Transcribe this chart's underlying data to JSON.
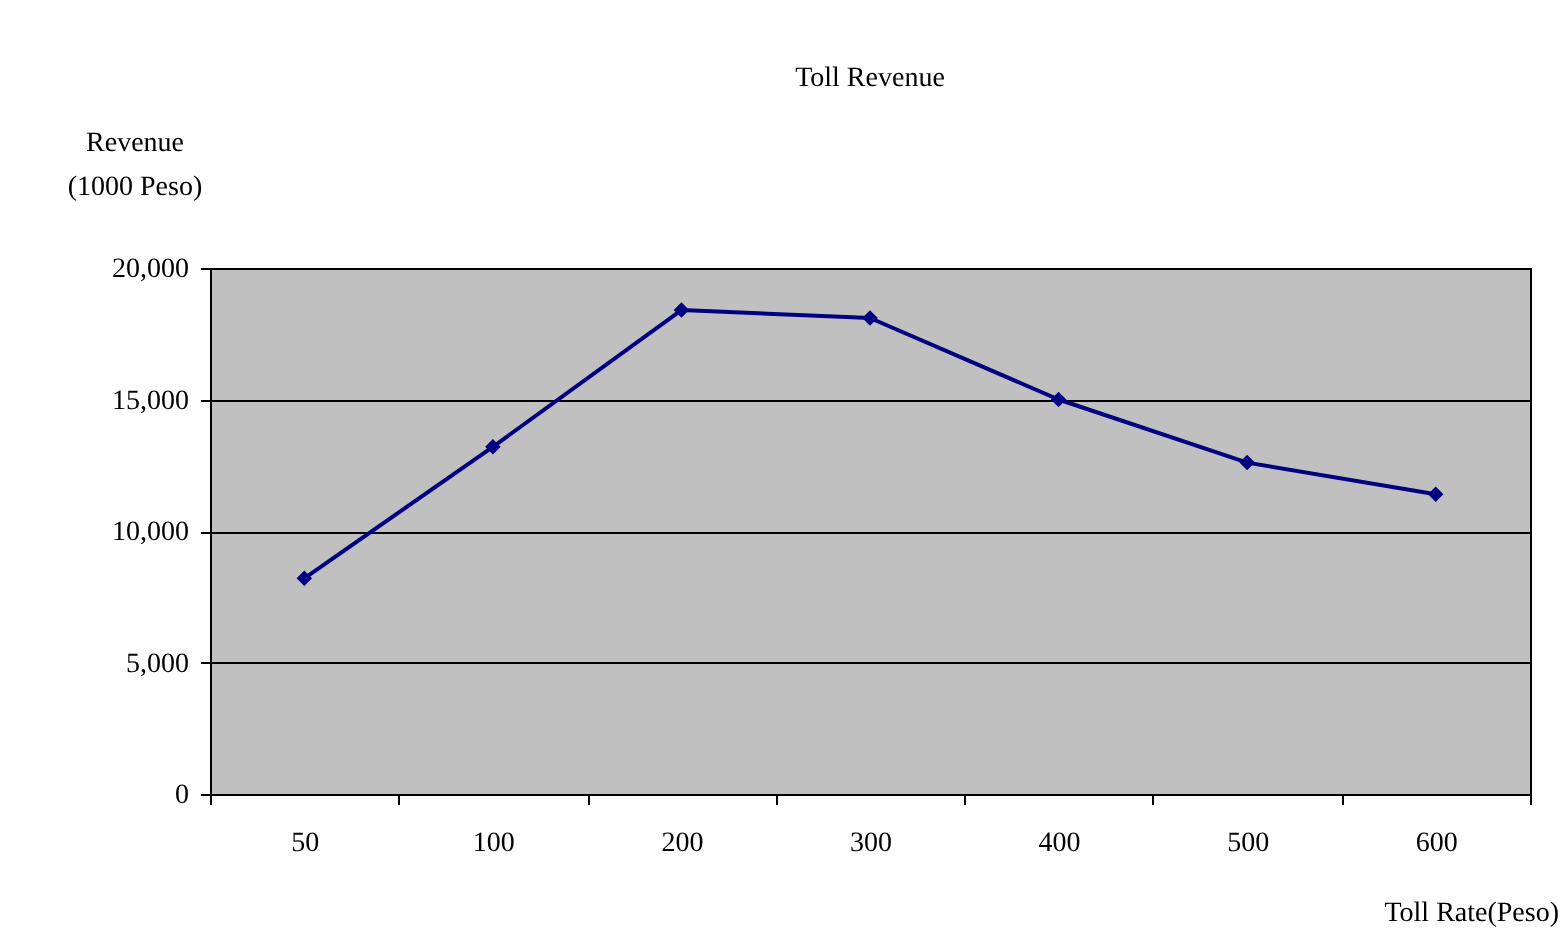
{
  "chart_data": {
    "type": "line",
    "title": "Toll Revenue",
    "xlabel": "Toll Rate(Peso)",
    "ylabel": "Revenue\n(1000 Peso)",
    "categories": [
      "50",
      "100",
      "200",
      "300",
      "400",
      "500",
      "600"
    ],
    "series": [
      {
        "color": "#000080",
        "values": [
          8200,
          13200,
          18400,
          18100,
          15000,
          12600,
          11400
        ]
      }
    ],
    "ylim": [
      0,
      20000
    ],
    "yticks": [
      0,
      {
        "value": 5000,
        "label": "5,000"
      },
      {
        "value": 10000,
        "label": "10,000"
      },
      {
        "value": 15000,
        "label": "15,000"
      },
      {
        "value": 20000,
        "label": "20,000"
      }
    ],
    "grid": "y",
    "marker": "diamond",
    "line_style": "solid",
    "legend": false
  }
}
